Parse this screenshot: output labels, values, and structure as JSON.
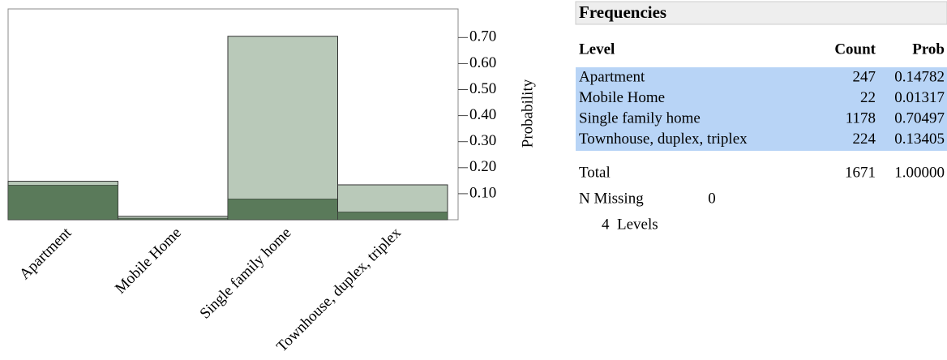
{
  "chart_data": {
    "type": "bar",
    "categories": [
      "Apartment",
      "Mobile Home",
      "Single family home",
      "Townhouse, duplex, triplex"
    ],
    "values": [
      0.14782,
      0.01317,
      0.70497,
      0.13405
    ],
    "highlight_values": [
      0.133,
      0.006,
      0.08,
      0.03
    ],
    "color": "#b9c9b9",
    "highlight_color": "#5a7a5a",
    "ylabel": "Probability",
    "ylim": [
      0,
      0.81
    ],
    "yticks": [
      {
        "value": 0.1,
        "label": "0.10"
      },
      {
        "value": 0.2,
        "label": "0.20"
      },
      {
        "value": 0.3,
        "label": "0.30"
      },
      {
        "value": 0.4,
        "label": "0.40"
      },
      {
        "value": 0.5,
        "label": "0.50"
      },
      {
        "value": 0.6,
        "label": "0.60"
      },
      {
        "value": 0.7,
        "label": "0.70"
      }
    ]
  },
  "table": {
    "title": "Frequencies",
    "header": [
      "Level",
      "Count",
      "Prob"
    ],
    "rows": [
      [
        "Apartment",
        "247",
        "0.14782"
      ],
      [
        "Mobile Home",
        "22",
        "0.01317"
      ],
      [
        "Single family home",
        "1178",
        "0.70497"
      ],
      [
        "Townhouse, duplex, triplex",
        "224",
        "0.13405"
      ]
    ],
    "total": [
      "Total",
      "1671",
      "1.00000"
    ],
    "missing": [
      "N Missing",
      "0"
    ],
    "levels": "4  Levels"
  }
}
